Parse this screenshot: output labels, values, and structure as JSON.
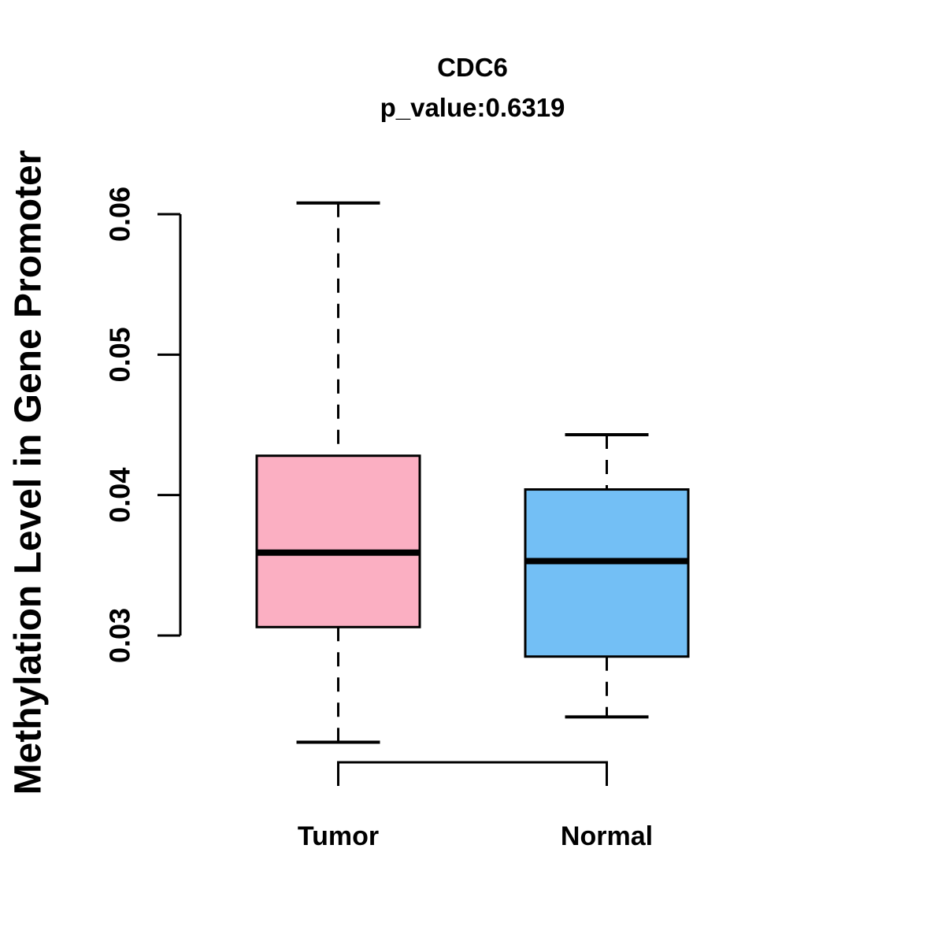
{
  "chart_data": {
    "type": "boxplot",
    "title": "CDC6",
    "subtitle": "p_value:0.6319",
    "ylabel": "Methylation Level in Gene Promoter",
    "xlabel": "",
    "y_axis": {
      "ticks": [
        0.03,
        0.04,
        0.05,
        0.06
      ],
      "tick_labels": [
        "0.03",
        "0.04",
        "0.05",
        "0.06"
      ],
      "range_shown": [
        0.022,
        0.061
      ]
    },
    "groups": [
      {
        "label": "Tumor",
        "box_color": "#FBAFC2",
        "whisker_low": 0.0224,
        "q1": 0.0306,
        "median": 0.0359,
        "q3": 0.0428,
        "whisker_high": 0.0608
      },
      {
        "label": "Normal",
        "box_color": "#73BFF5",
        "whisker_low": 0.0242,
        "q1": 0.0285,
        "median": 0.0353,
        "q3": 0.0404,
        "whisker_high": 0.0443
      }
    ],
    "comparison_bracket": true,
    "line_color": "#000000",
    "background_color": "#FFFFFF",
    "legend": "none",
    "grid": false
  }
}
